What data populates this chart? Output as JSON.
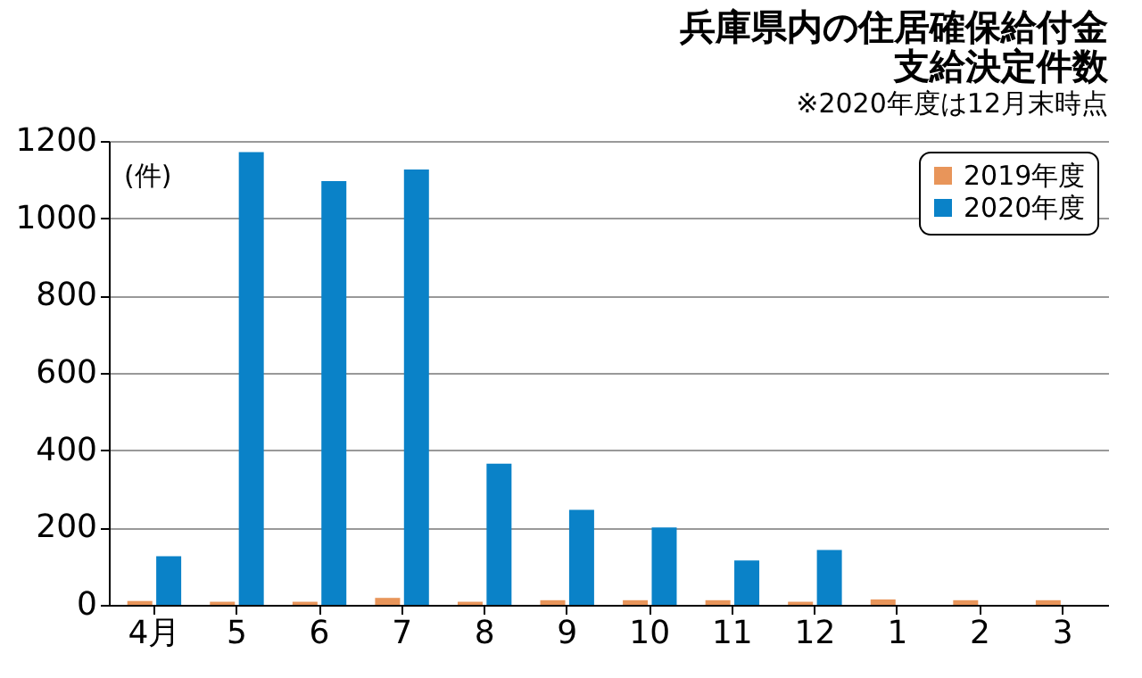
{
  "chart_data": {
    "type": "bar",
    "title": [
      "兵庫県内の住居確保給付金",
      "支給決定件数"
    ],
    "subtitle": "※2020年度は12月末時点",
    "ylabel": "(件)",
    "categories": [
      "4月",
      "5",
      "6",
      "7",
      "8",
      "9",
      "10",
      "11",
      "12",
      "1",
      "2",
      "3"
    ],
    "series": [
      {
        "name": "2019年度",
        "color": "#e8955a",
        "values": [
          10,
          8,
          8,
          18,
          8,
          12,
          12,
          12,
          8,
          14,
          12,
          12
        ]
      },
      {
        "name": "2020年度",
        "color": "#0a82c8",
        "values": [
          126,
          1171,
          1096,
          1126,
          365,
          246,
          200,
          115,
          142,
          null,
          null,
          null
        ]
      }
    ],
    "ylim": [
      0,
      1200
    ],
    "yticks": [
      0,
      200,
      400,
      600,
      800,
      1000,
      1200
    ],
    "grid": "y",
    "legend": "top right"
  }
}
